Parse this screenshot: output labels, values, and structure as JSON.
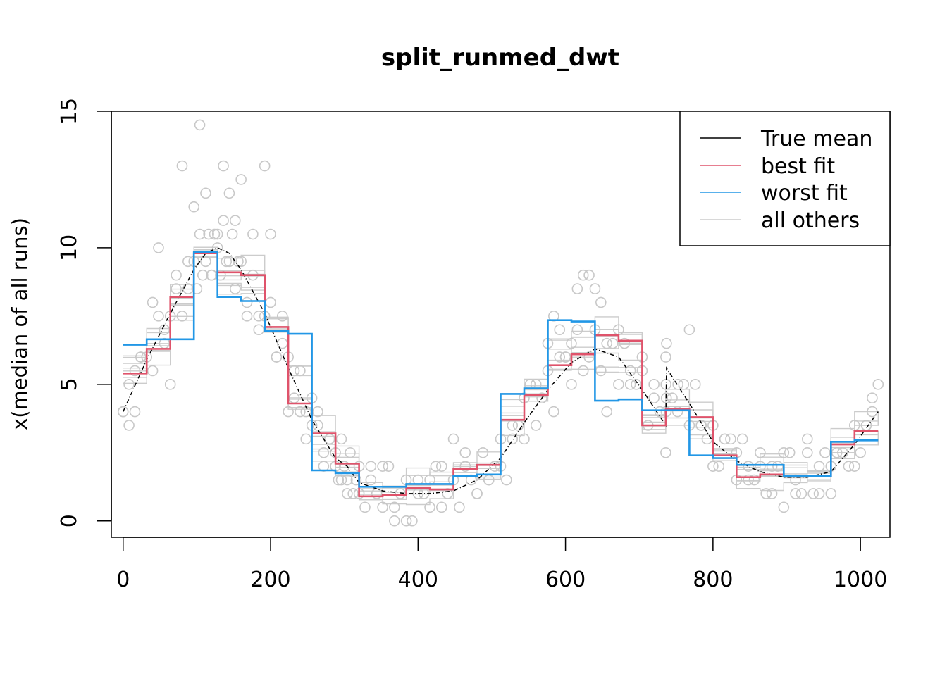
{
  "chart_data": {
    "type": "line",
    "title": "split_runmed_dwt",
    "xlabel": "",
    "ylabel": "x(median of all runs)",
    "xlim": [
      -16,
      1040
    ],
    "ylim": [
      -0.6,
      15
    ],
    "xticks": [
      0,
      200,
      400,
      600,
      800,
      1000
    ],
    "yticks": [
      0,
      5,
      10,
      15
    ],
    "legend_position": "top-right",
    "legend": [
      {
        "label": "True mean",
        "color": "#000000"
      },
      {
        "label": "best fit",
        "color": "#DF536B"
      },
      {
        "label": "worst fit",
        "color": "#2297E6"
      },
      {
        "label": "all others",
        "color": "#CCCCCC"
      }
    ],
    "true_mean": {
      "name": "True mean",
      "x": [
        0,
        32,
        64,
        96,
        112,
        128,
        144,
        160,
        192,
        224,
        256,
        288,
        304,
        320,
        352,
        384,
        416,
        448,
        480,
        512,
        544,
        576,
        608,
        640,
        672,
        704,
        736,
        737,
        768,
        800,
        832,
        864,
        896,
        928,
        960,
        992,
        1024
      ],
      "y": [
        4.0,
        5.9,
        7.6,
        9.2,
        9.8,
        10.0,
        9.8,
        9.2,
        7.6,
        5.6,
        3.7,
        2.3,
        2.0,
        1.4,
        1.1,
        1.0,
        1.0,
        1.1,
        1.5,
        2.3,
        3.6,
        4.8,
        5.8,
        6.3,
        6.0,
        4.8,
        3.5,
        5.6,
        4.3,
        2.9,
        2.2,
        1.8,
        1.6,
        1.6,
        1.8,
        2.8,
        4.0
      ]
    },
    "series": [
      {
        "name": "best fit",
        "color": "#DF536B",
        "x": [
          0,
          32,
          64,
          96,
          128,
          160,
          192,
          224,
          256,
          288,
          320,
          352,
          384,
          416,
          448,
          480,
          512,
          544,
          576,
          608,
          640,
          672,
          704,
          736,
          768,
          800,
          832,
          864,
          896,
          928,
          960,
          992,
          1024
        ],
        "values": [
          5.4,
          6.3,
          8.2,
          9.8,
          9.1,
          9.0,
          7.1,
          4.3,
          3.2,
          2.1,
          0.9,
          0.95,
          1.2,
          1.15,
          1.9,
          2.05,
          3.7,
          4.6,
          5.7,
          6.1,
          6.8,
          6.6,
          3.5,
          4.1,
          3.8,
          2.4,
          1.6,
          1.7,
          1.65,
          1.65,
          2.8,
          3.3,
          3.3
        ]
      },
      {
        "name": "worst fit",
        "color": "#2297E6",
        "x": [
          0,
          32,
          64,
          96,
          128,
          160,
          192,
          224,
          256,
          288,
          320,
          352,
          384,
          416,
          448,
          480,
          512,
          544,
          576,
          608,
          640,
          672,
          704,
          736,
          768,
          800,
          832,
          864,
          896,
          928,
          960,
          992,
          1024
        ],
        "values": [
          6.45,
          6.65,
          6.65,
          9.85,
          8.2,
          8.05,
          6.95,
          6.85,
          1.85,
          1.75,
          1.25,
          1.25,
          1.35,
          1.35,
          1.65,
          1.7,
          4.65,
          4.85,
          7.35,
          7.3,
          4.4,
          4.45,
          4.05,
          4.05,
          2.4,
          2.3,
          2.05,
          2.05,
          1.65,
          1.65,
          2.9,
          2.95,
          2.95
        ]
      }
    ],
    "others_note": "all others",
    "points_x": [
      0,
      8,
      16,
      24,
      40,
      48,
      56,
      64,
      72,
      80,
      88,
      96,
      104,
      112,
      120,
      128,
      136,
      144,
      152,
      160,
      168,
      176,
      184,
      192,
      200,
      208,
      216,
      224,
      232,
      240,
      248,
      256,
      264,
      272,
      280,
      288,
      296,
      304,
      312,
      320,
      336,
      352,
      368,
      384,
      400,
      416,
      432,
      448,
      464,
      480,
      496,
      512,
      528,
      544,
      560,
      576,
      584,
      592,
      600,
      608,
      616,
      624,
      632,
      640,
      648,
      656,
      672,
      688,
      704,
      720,
      736,
      752,
      768,
      784,
      800,
      816,
      832,
      848,
      864,
      880,
      896,
      912,
      928,
      944,
      960,
      976,
      992,
      1008,
      1016,
      1024
    ],
    "points_y": [
      4.0,
      3.5,
      5.5,
      6.0,
      8.0,
      10.0,
      7.0,
      5.0,
      9.0,
      13.0,
      8.5,
      11.5,
      14.5,
      12.0,
      9.0,
      10.5,
      13.0,
      12.0,
      11.0,
      12.5,
      7.5,
      10.5,
      7.0,
      13.0,
      10.5,
      6.0,
      7.5,
      4.0,
      5.5,
      4.0,
      3.0,
      4.5,
      3.5,
      2.5,
      3.0,
      2.0,
      1.5,
      1.0,
      1.0,
      1.0,
      1.5,
      2.0,
      0.0,
      0.0,
      1.0,
      1.5,
      2.0,
      3.0,
      2.5,
      1.0,
      1.5,
      2.0,
      3.0,
      4.5,
      5.0,
      6.5,
      7.5,
      7.0,
      6.0,
      6.5,
      8.5,
      9.0,
      9.0,
      8.5,
      8.0,
      4.0,
      7.0,
      5.5,
      6.0,
      5.0,
      6.0,
      4.0,
      7.0,
      3.5,
      2.0,
      3.0,
      2.5,
      1.5,
      2.0,
      1.0,
      2.5,
      1.0,
      3.0,
      1.0,
      2.0,
      2.5,
      2.0,
      3.5,
      4.0,
      5.0
    ]
  }
}
